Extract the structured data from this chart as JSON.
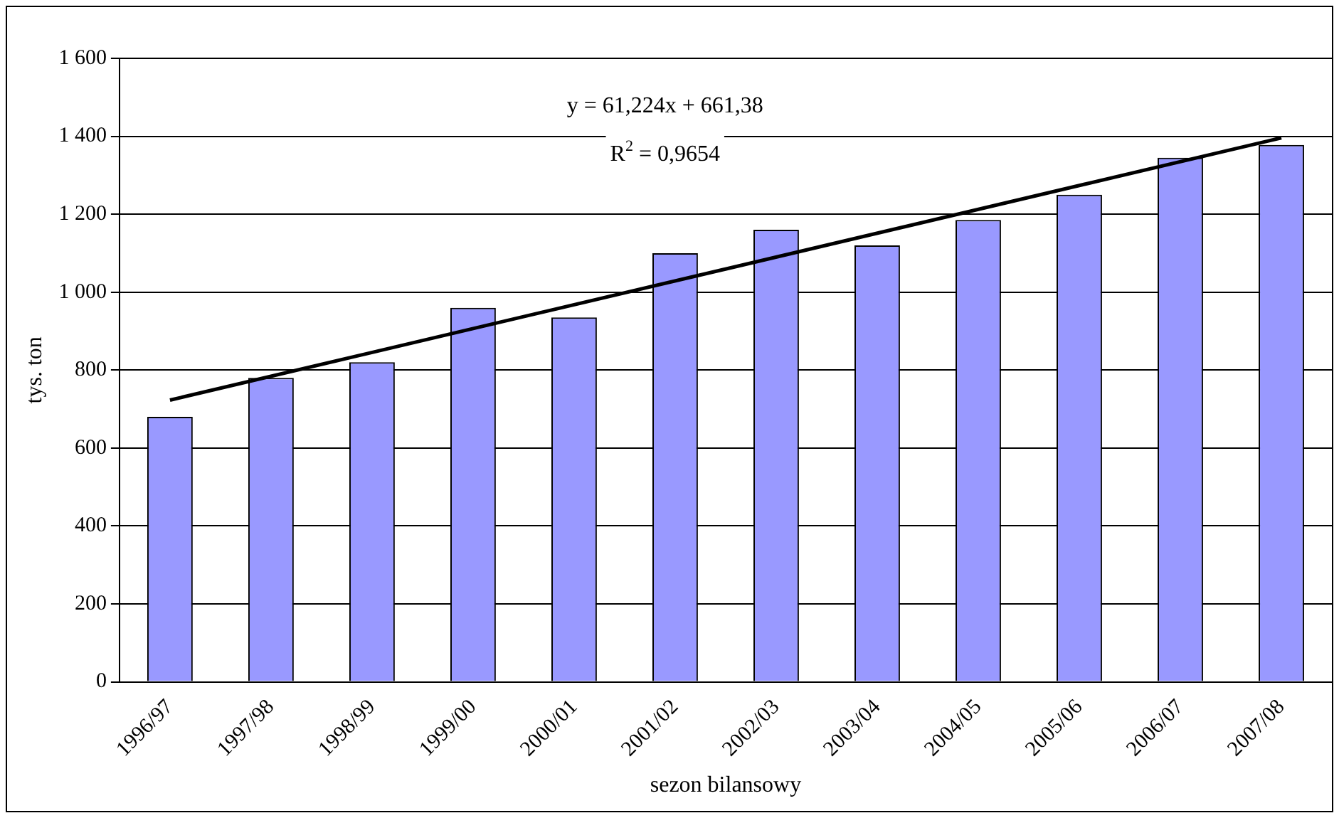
{
  "chart_data": {
    "type": "bar",
    "xlabel": "sezon bilansowy",
    "ylabel": "tys. ton",
    "categories": [
      "1996/97",
      "1997/98",
      "1998/99",
      "1999/00",
      "2000/01",
      "2001/02",
      "2002/03",
      "2003/04",
      "2004/05",
      "2005/06",
      "2006/07",
      "2007/08"
    ],
    "series": [
      {
        "color": "#9999ff",
        "values": [
          680,
          780,
          820,
          960,
          935,
          1100,
          1160,
          1120,
          1185,
          1250,
          1345,
          1378
        ]
      },
      {
        "type": "line",
        "color": "#000000",
        "x": [
          "1996/97",
          "2007/08"
        ],
        "values": [
          723,
          1396
        ]
      }
    ],
    "ylim": [
      0,
      1600
    ],
    "yticks": [
      0,
      200,
      400,
      600,
      800,
      {
        "value": 1000,
        "label": "1 000"
      },
      {
        "value": 1200,
        "label": "1 200"
      },
      {
        "value": 1400,
        "label": "1 400"
      },
      {
        "value": 1600,
        "label": "1 600"
      }
    ],
    "grid": "y",
    "legend": false,
    "marker": "none",
    "line_style": "solid",
    "annotations": [
      "y = 61,224x + 661,38",
      "R$^{2}$ = 0,9654"
    ]
  }
}
